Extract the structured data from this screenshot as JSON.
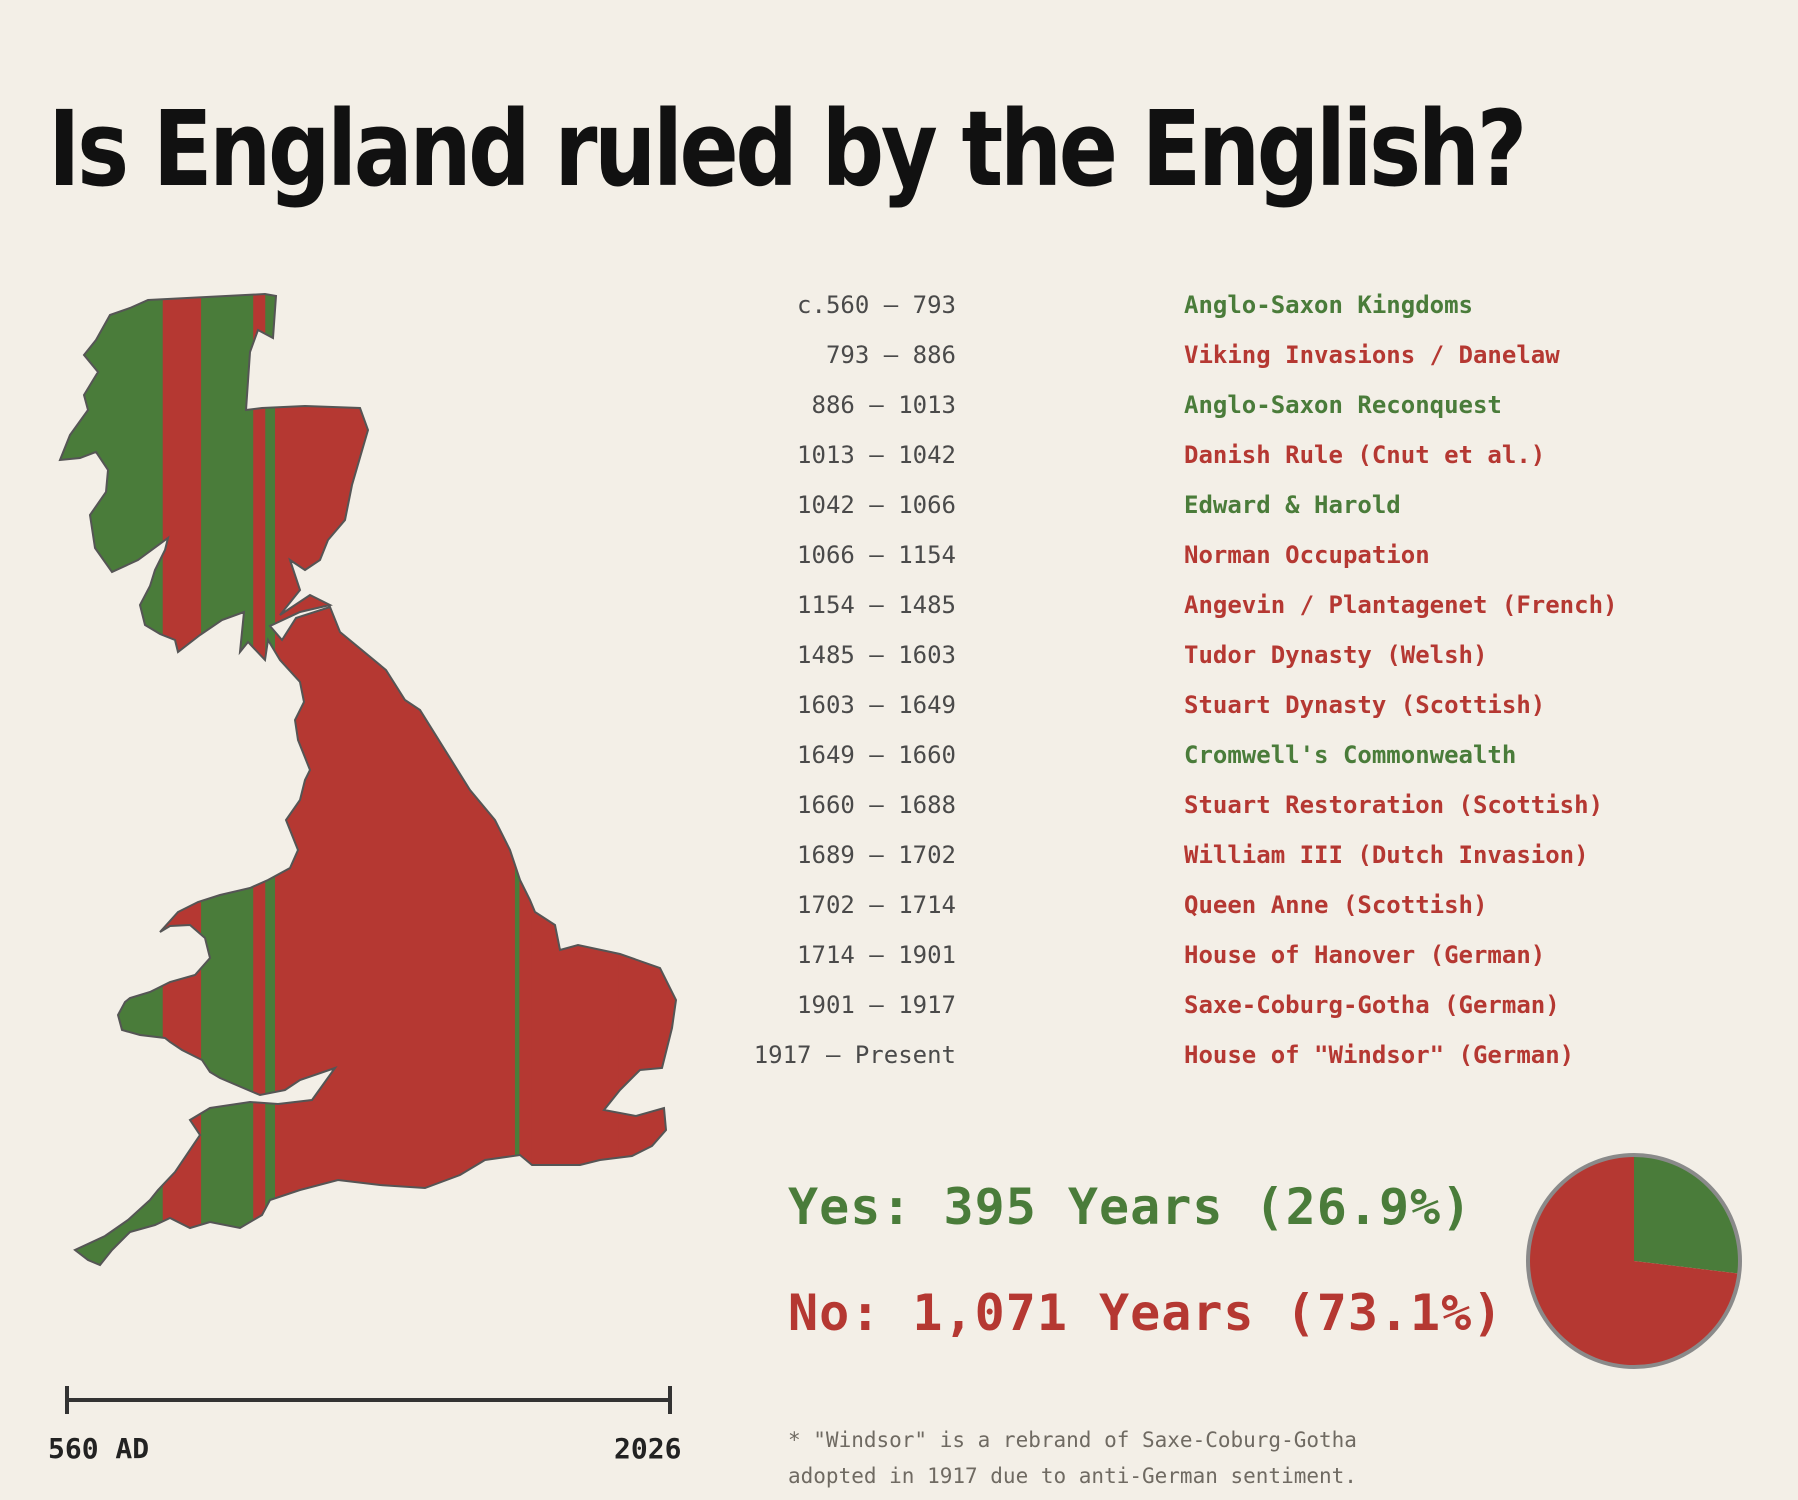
{
  "title": "Is England ruled by the English?",
  "colors": {
    "english": "#4a7c3a",
    "foreign": "#b53832",
    "background": "#f3efe7",
    "outline": "#555555"
  },
  "chart_data": [
    {
      "type": "bar",
      "title": "Is England ruled by the English?",
      "axis_start_label": "560 AD",
      "axis_end_label": "2026",
      "periods": [
        {
          "years": "c.560 – 793",
          "name": "Anglo-Saxon Kingdoms",
          "start": 560,
          "end": 793,
          "english": true
        },
        {
          "years": "793 – 886",
          "name": "Viking Invasions / Danelaw",
          "start": 793,
          "end": 886,
          "english": false
        },
        {
          "years": "886 – 1013",
          "name": "Anglo-Saxon Reconquest",
          "start": 886,
          "end": 1013,
          "english": true
        },
        {
          "years": "1013 – 1042",
          "name": "Danish Rule (Cnut et al.)",
          "start": 1013,
          "end": 1042,
          "english": false
        },
        {
          "years": "1042 – 1066",
          "name": "Edward & Harold",
          "start": 1042,
          "end": 1066,
          "english": true
        },
        {
          "years": "1066 – 1154",
          "name": "Norman Occupation",
          "start": 1066,
          "end": 1154,
          "english": false
        },
        {
          "years": "1154 – 1485",
          "name": "Angevin / Plantagenet (French)",
          "start": 1154,
          "end": 1485,
          "english": false
        },
        {
          "years": "1485 – 1603",
          "name": "Tudor Dynasty (Welsh)",
          "start": 1485,
          "end": 1603,
          "english": false
        },
        {
          "years": "1603 – 1649",
          "name": "Stuart Dynasty (Scottish)",
          "start": 1603,
          "end": 1649,
          "english": false
        },
        {
          "years": "1649 – 1660",
          "name": "Cromwell's Commonwealth",
          "start": 1649,
          "end": 1660,
          "english": true
        },
        {
          "years": "1660 – 1688",
          "name": "Stuart Restoration (Scottish)",
          "start": 1660,
          "end": 1688,
          "english": false
        },
        {
          "years": "1689 – 1702",
          "name": "William III (Dutch Invasion)",
          "start": 1689,
          "end": 1702,
          "english": false
        },
        {
          "years": "1702 – 1714",
          "name": "Queen Anne (Scottish)",
          "start": 1702,
          "end": 1714,
          "english": false
        },
        {
          "years": "1714 – 1901",
          "name": "House of Hanover (German)",
          "start": 1714,
          "end": 1901,
          "english": false
        },
        {
          "years": "1901 – 1917",
          "name": "Saxe-Coburg-Gotha (German)",
          "start": 1901,
          "end": 1917,
          "english": false
        },
        {
          "years": "1917 – Present",
          "name": "House of \"Windsor\" (German)",
          "start": 1917,
          "end": 2026,
          "english": false
        }
      ]
    },
    {
      "type": "pie",
      "slices": [
        {
          "label": "Yes: 395 Years (26.9%)",
          "value": 26.9,
          "color": "#4a7c3a"
        },
        {
          "label": "No: 1,071 Years (73.1%)",
          "value": 73.1,
          "color": "#b53832"
        }
      ]
    }
  ],
  "summary": {
    "yes": "Yes: 395 Years (26.9%)",
    "no": "No: 1,071 Years (73.1%)"
  },
  "footnote": {
    "line1": "* \"Windsor\" is a rebrand of Saxe-Coburg-Gotha",
    "line2": "adopted in 1917 due to anti-German sentiment."
  }
}
